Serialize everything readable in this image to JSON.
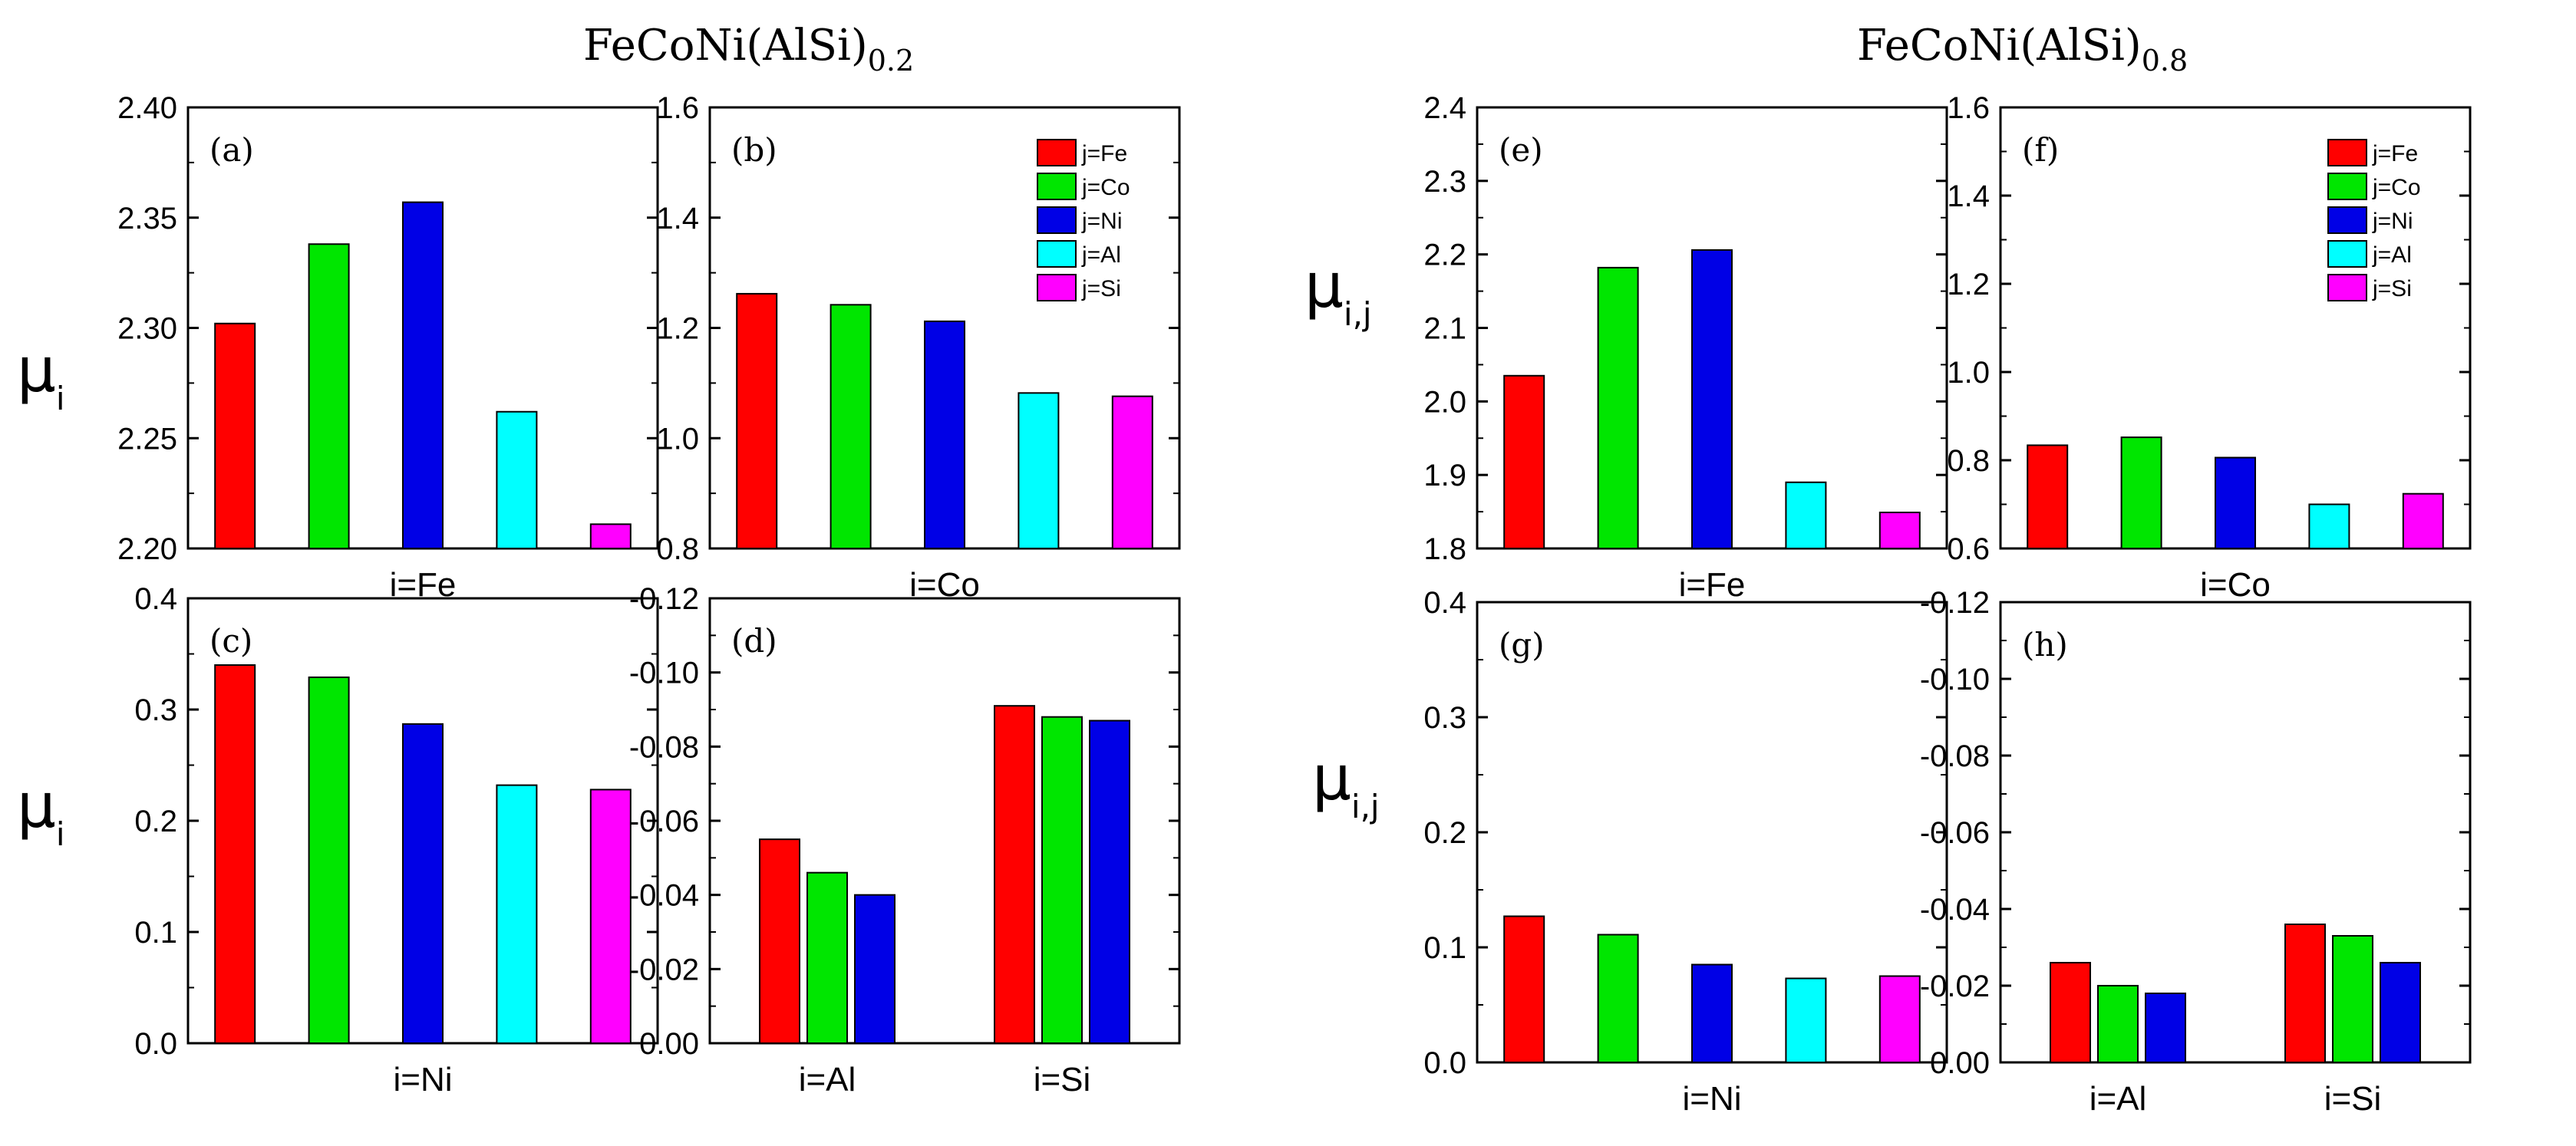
{
  "figure": {
    "left_title": {
      "base": "FeCoNi(AlSi)",
      "sub": "0.2"
    },
    "right_title": {
      "base": "FeCoNi(AlSi)",
      "sub": "0.8"
    },
    "ylabel_left": {
      "base": "μ",
      "sub": "i"
    },
    "ylabel_right": {
      "base": "μ",
      "sub": "i,j"
    }
  },
  "legend": [
    {
      "label": "j=Fe",
      "color": "#ff0000"
    },
    {
      "label": "j=Co",
      "color": "#00e600"
    },
    {
      "label": "j=Ni",
      "color": "#0000e6"
    },
    {
      "label": "j=Al",
      "color": "#00ffff"
    },
    {
      "label": "j=Si",
      "color": "#ff00ff"
    }
  ],
  "chart_data": [
    {
      "id": "a",
      "type": "bar",
      "label": "(a)",
      "xlabels": [
        "i=Fe"
      ],
      "ylim": [
        2.2,
        2.4
      ],
      "yticks": [
        "2.20",
        "2.25",
        "2.30",
        "2.35",
        "2.40"
      ],
      "groups": [
        {
          "name": "i=Fe",
          "series": [
            "j=Fe",
            "j=Co",
            "j=Ni",
            "j=Al",
            "j=Si"
          ],
          "values": [
            2.302,
            2.338,
            2.357,
            2.262,
            2.211
          ]
        }
      ]
    },
    {
      "id": "b",
      "type": "bar",
      "label": "(b)",
      "xlabels": [
        "i=Co"
      ],
      "ylim": [
        0.8,
        1.6
      ],
      "yticks": [
        "0.8",
        "1.0",
        "1.2",
        "1.4",
        "1.6"
      ],
      "groups": [
        {
          "name": "i=Co",
          "series": [
            "j=Fe",
            "j=Co",
            "j=Ni",
            "j=Al",
            "j=Si"
          ],
          "values": [
            1.262,
            1.242,
            1.212,
            1.082,
            1.076
          ]
        }
      ]
    },
    {
      "id": "c",
      "type": "bar",
      "label": "(c)",
      "xlabels": [
        "i=Ni"
      ],
      "ylim": [
        0.0,
        0.4
      ],
      "yticks": [
        "0.0",
        "0.1",
        "0.2",
        "0.3",
        "0.4"
      ],
      "groups": [
        {
          "name": "i=Ni",
          "series": [
            "j=Fe",
            "j=Co",
            "j=Ni",
            "j=Al",
            "j=Si"
          ],
          "values": [
            0.34,
            0.329,
            0.287,
            0.232,
            0.228
          ]
        }
      ]
    },
    {
      "id": "d",
      "type": "bar",
      "label": "(d)",
      "xlabels": [
        "i=Al",
        "i=Si"
      ],
      "ylim": [
        0.0,
        -0.12
      ],
      "yticks": [
        "0.00",
        "-0.02",
        "-0.04",
        "-0.06",
        "-0.08",
        "-0.10",
        "-0.12"
      ],
      "groups": [
        {
          "name": "i=Al",
          "series": [
            "j=Fe",
            "j=Co",
            "j=Ni"
          ],
          "values": [
            -0.055,
            -0.046,
            -0.04
          ]
        },
        {
          "name": "i=Si",
          "series": [
            "j=Fe",
            "j=Co",
            "j=Ni"
          ],
          "values": [
            -0.091,
            -0.088,
            -0.087
          ]
        }
      ]
    },
    {
      "id": "e",
      "type": "bar",
      "label": "(e)",
      "xlabels": [
        "i=Fe"
      ],
      "ylim": [
        1.8,
        2.4
      ],
      "yticks": [
        "1.8",
        "1.9",
        "2.0",
        "2.1",
        "2.2",
        "2.3",
        "2.4"
      ],
      "groups": [
        {
          "name": "i=Fe",
          "series": [
            "j=Fe",
            "j=Co",
            "j=Ni",
            "j=Al",
            "j=Si"
          ],
          "values": [
            2.035,
            2.182,
            2.206,
            1.89,
            1.849
          ]
        }
      ]
    },
    {
      "id": "f",
      "type": "bar",
      "label": "(f)",
      "xlabels": [
        "i=Co"
      ],
      "ylim": [
        0.6,
        1.6
      ],
      "yticks": [
        "0.6",
        "0.8",
        "1.0",
        "1.2",
        "1.4",
        "1.6"
      ],
      "groups": [
        {
          "name": "i=Co",
          "series": [
            "j=Fe",
            "j=Co",
            "j=Ni",
            "j=Al",
            "j=Si"
          ],
          "values": [
            0.834,
            0.852,
            0.806,
            0.7,
            0.724
          ]
        }
      ]
    },
    {
      "id": "g",
      "type": "bar",
      "label": "(g)",
      "xlabels": [
        "i=Ni"
      ],
      "ylim": [
        0.0,
        0.4
      ],
      "yticks": [
        "0.0",
        "0.1",
        "0.2",
        "0.3",
        "0.4"
      ],
      "groups": [
        {
          "name": "i=Ni",
          "series": [
            "j=Fe",
            "j=Co",
            "j=Ni",
            "j=Al",
            "j=Si"
          ],
          "values": [
            0.127,
            0.111,
            0.085,
            0.073,
            0.075
          ]
        }
      ]
    },
    {
      "id": "h",
      "type": "bar",
      "label": "(h)",
      "xlabels": [
        "i=Al",
        "i=Si"
      ],
      "ylim": [
        0.0,
        -0.12
      ],
      "yticks": [
        "0.00",
        "-0.02",
        "-0.04",
        "-0.06",
        "-0.08",
        "-0.10",
        "-0.12"
      ],
      "groups": [
        {
          "name": "i=Al",
          "series": [
            "j=Fe",
            "j=Co",
            "j=Ni"
          ],
          "values": [
            -0.026,
            -0.02,
            -0.018
          ]
        },
        {
          "name": "i=Si",
          "series": [
            "j=Fe",
            "j=Co",
            "j=Ni"
          ],
          "values": [
            -0.036,
            -0.033,
            -0.026
          ]
        }
      ]
    }
  ]
}
